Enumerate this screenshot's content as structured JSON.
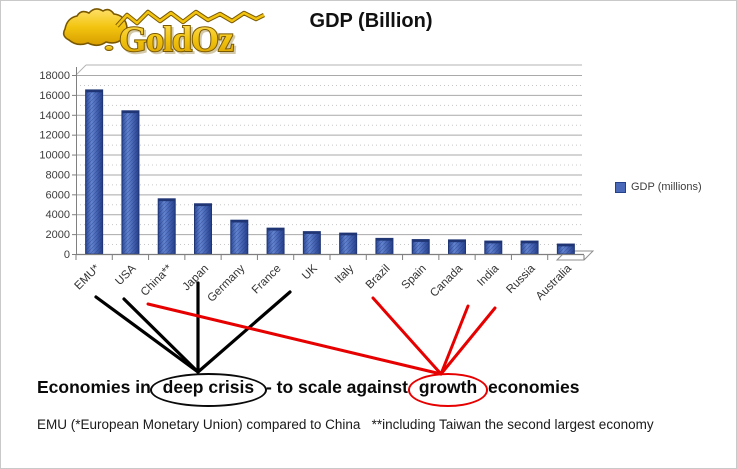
{
  "logo": {
    "text": "GoldOz",
    "gold": "#F2C40F",
    "outline": "#7a5800"
  },
  "header": {
    "title": "GDP (Billion)"
  },
  "legend": {
    "label": "GDP (millions)",
    "swatch_color": "#4a69b8"
  },
  "chart_data": {
    "type": "bar",
    "title": "GDP (Billion)",
    "categories": [
      "EMU*",
      "USA",
      "China**",
      "Japan",
      "Germany",
      "France",
      "UK",
      "Italy",
      "Brazil",
      "Spain",
      "Canada",
      "India",
      "Russia",
      "Australia"
    ],
    "series": [
      {
        "name": "GDP (millions)",
        "values": [
          16500,
          14400,
          5550,
          5050,
          3400,
          2600,
          2250,
          2100,
          1570,
          1450,
          1420,
          1300,
          1300,
          1000
        ]
      }
    ],
    "ylim": [
      0,
      18000
    ],
    "ytick_step": 2000,
    "yticks": [
      0,
      2000,
      4000,
      6000,
      8000,
      10000,
      12000,
      14000,
      16000,
      18000
    ],
    "grid": true,
    "legend_position": "right",
    "bar_color": "#4a69b8",
    "bar_edge": "#1f3574",
    "xlabel": "",
    "ylabel": ""
  },
  "annotations": {
    "crisis_economies": [
      "EMU*",
      "USA",
      "Japan",
      "UK"
    ],
    "growth_economies": [
      "China**",
      "Brazil",
      "India",
      "Russia"
    ],
    "crisis_color": "#000000",
    "growth_color": "#e60000",
    "headline": {
      "part1": "Economies in ",
      "circled_crisis": "deep crisis",
      "part2": " - to scale against ",
      "circled_growth": "growth",
      "part3": " economies"
    },
    "footnote": "EMU (*European Monetary Union) compared to China   **including Taiwan the second largest economy"
  }
}
